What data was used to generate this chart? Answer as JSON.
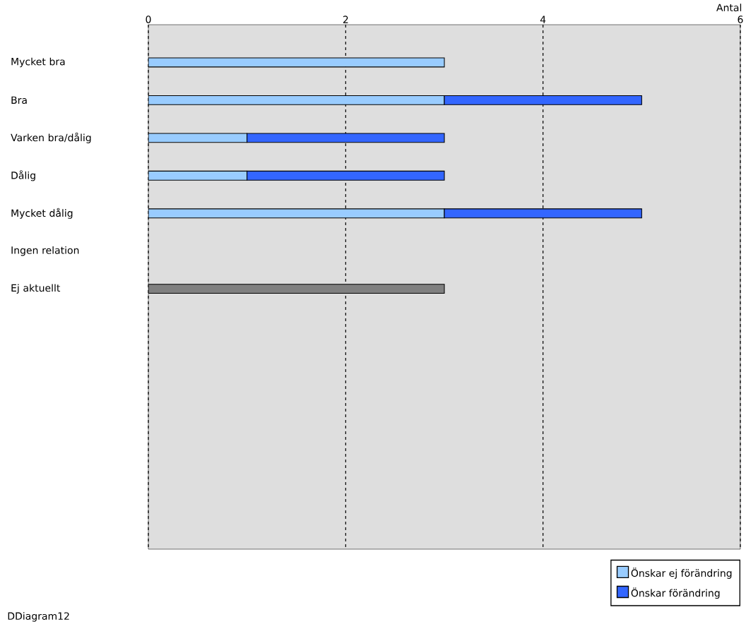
{
  "chart_data": {
    "type": "bar",
    "orientation": "horizontal",
    "stacked": true,
    "xlabel": "Antal",
    "categories": [
      "Mycket bra",
      "Bra",
      "Varken bra/dålig",
      "Dålig",
      "Mycket dålig",
      "Ingen relation",
      "Ej aktuellt"
    ],
    "series": [
      {
        "name": "Önskar ej förändring",
        "color": "#99ccff",
        "values": [
          3,
          3,
          1,
          1,
          3,
          null,
          null
        ]
      },
      {
        "name": "Önskar förändring",
        "color": "#3366ff",
        "values": [
          null,
          2,
          2,
          2,
          2,
          null,
          null
        ]
      },
      {
        "color": "#808080",
        "values": [
          null,
          null,
          null,
          null,
          null,
          null,
          3
        ]
      }
    ],
    "xlim": [
      0,
      6
    ],
    "xticks": [
      0,
      2,
      4,
      6
    ],
    "grid": "x",
    "legend": "bottom right",
    "annotations": [
      "DDiagram12"
    ]
  }
}
